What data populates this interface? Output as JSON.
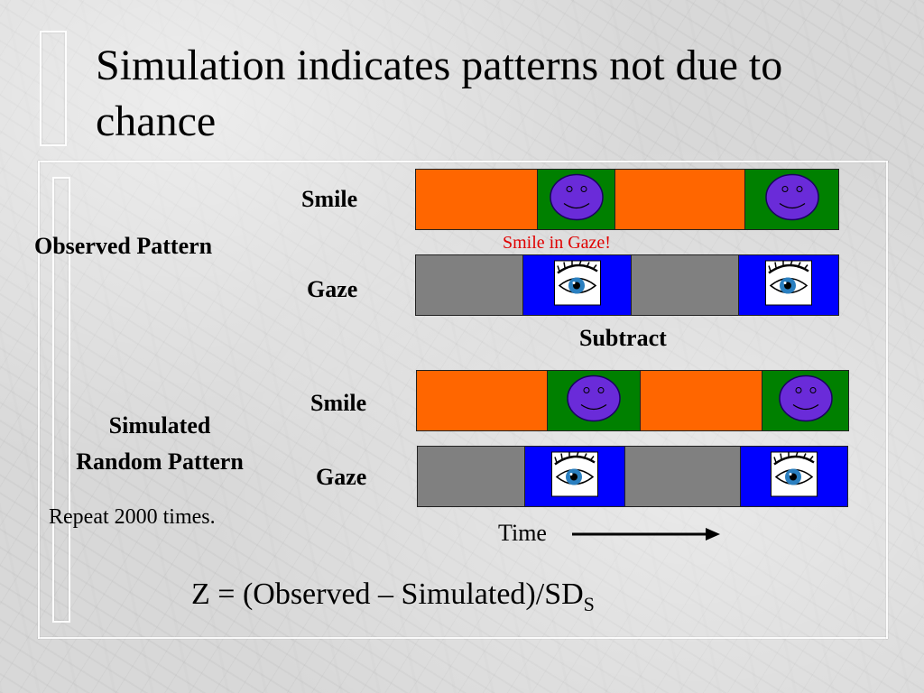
{
  "slide": {
    "title": "Simulation indicates patterns not due to chance",
    "observed_label": "Observed Pattern",
    "simulated_label_line1": "Simulated",
    "simulated_label_line2": "Random Pattern",
    "repeat_note": "Repeat 2000 times.",
    "smile_in_gaze_note": "Smile in Gaze!",
    "subtract_label": "Subtract",
    "time_label": "Time",
    "formula_main": "Z = (Observed – Simulated)/SD",
    "formula_sub": "S"
  },
  "observed": {
    "smile_label": "Smile",
    "gaze_label": "Gaze"
  },
  "simulated": {
    "smile_label": "Smile",
    "gaze_label": "Gaze"
  },
  "colors": {
    "smile_off": "#ff6600",
    "smile_on": "#008000",
    "gaze_off": "#808080",
    "gaze_on": "#0000ff",
    "face": "#6a2bd9",
    "note": "#e00000"
  },
  "icons": {
    "smile": "smiley-face-icon",
    "gaze": "eye-icon",
    "time": "arrow-right-icon"
  }
}
